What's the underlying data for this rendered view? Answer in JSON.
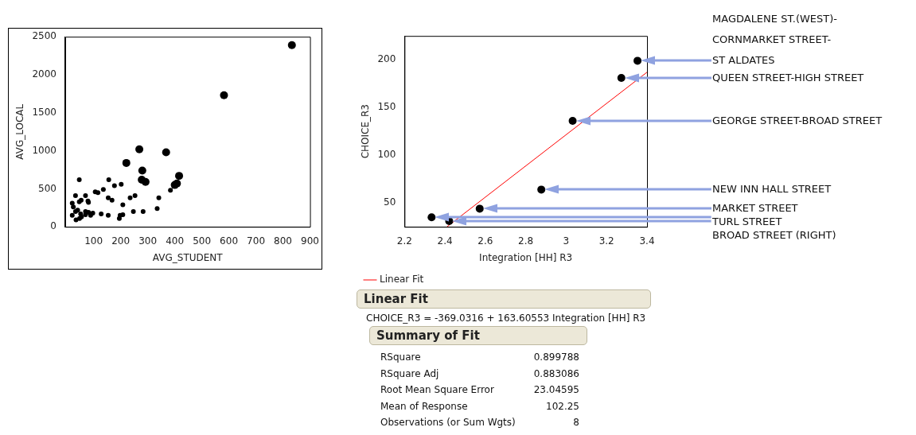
{
  "chart_data": [
    {
      "type": "scatter",
      "xlabel": "AVG_STUDENT",
      "ylabel": "AVG_LOCAL",
      "xlim": [
        -5,
        900
      ],
      "ylim": [
        0,
        2500
      ],
      "xticks": [
        100,
        200,
        300,
        400,
        500,
        600,
        700,
        800,
        900
      ],
      "yticks": [
        0,
        500,
        1000,
        1500,
        2000,
        2500
      ],
      "grid": false,
      "legend": false,
      "marker": "circle",
      "series": [
        {
          "color": "#000000",
          "x": [
            47,
            21,
            25,
            33,
            33,
            47,
            54,
            41,
            52,
            35,
            21,
            48,
            55,
            70,
            70,
            70,
            79,
            81,
            81,
            89,
            97,
            106,
            116,
            128,
            136,
            156,
            154,
            154,
            168,
            177,
            202,
            208,
            208,
            198,
            195,
            235,
            247,
            253,
            283,
            335,
            341,
            384
          ],
          "values": [
            620,
            310,
            260,
            410,
            200,
            330,
            350,
            220,
            170,
            90,
            150,
            110,
            130,
            410,
            200,
            160,
            340,
            320,
            190,
            150,
            180,
            460,
            450,
            170,
            490,
            620,
            380,
            150,
            350,
            540,
            560,
            290,
            160,
            150,
            110,
            380,
            200,
            410,
            200,
            240,
            380,
            480
          ]
        },
        {
          "color": "#000000",
          "x": [
            833,
            582,
            269,
            368,
            221,
            280,
            278,
            292,
            400,
            408,
            416
          ],
          "values": [
            2390,
            1730,
            1020,
            980,
            840,
            740,
            620,
            590,
            550,
            570,
            670
          ]
        }
      ]
    },
    {
      "type": "scatter",
      "xlabel": "Integration [HH] R3",
      "ylabel": "CHOICE_R3",
      "xlim": [
        2.2,
        3.4
      ],
      "ylim": [
        25,
        225
      ],
      "xticks": [
        2.2,
        2.4,
        2.6,
        2.8,
        3,
        3.2,
        3.4
      ],
      "yticks": [
        50,
        100,
        150,
        200
      ],
      "grid": false,
      "legend": "bottom left",
      "marker": "circle",
      "series": [
        {
          "color": "#000000",
          "x": [
            3.353,
            3.273,
            3.032,
            2.877,
            2.572,
            2.334,
            2.421
          ],
          "values": [
            199,
            181,
            136,
            64,
            44,
            35,
            31
          ]
        },
        {
          "type": "line",
          "name": "Linear Fit",
          "color": "#ff0000",
          "marker": "none",
          "x": [
            2.41,
            3.4
          ],
          "values": [
            25,
            187
          ]
        }
      ],
      "annotations": [
        "MAGDALENE ST.(WEST)-\nCORNMARKET STREET-\nST ALDATES",
        "QUEEN STREET-HIGH STREET",
        "GEORGE STREET-BROAD STREET",
        "NEW INN HALL STREET",
        "MARKET STREET",
        "TURL STREET",
        "BROAD STREET (RIGHT)"
      ]
    },
    {
      "type": "other",
      "title": "Linear Fit",
      "subtitle": "CHOICE_R3 = -369.0316 + 163.60553 Integration [HH] R3",
      "annotations": [
        "Summary of Fit",
        "RSquare 0.899788",
        "RSquare Adj 0.883086",
        "Root Mean Square Error 23.04595",
        "Mean of Response 102.25",
        "Observations (or Sum Wgts) 8"
      ]
    }
  ]
}
